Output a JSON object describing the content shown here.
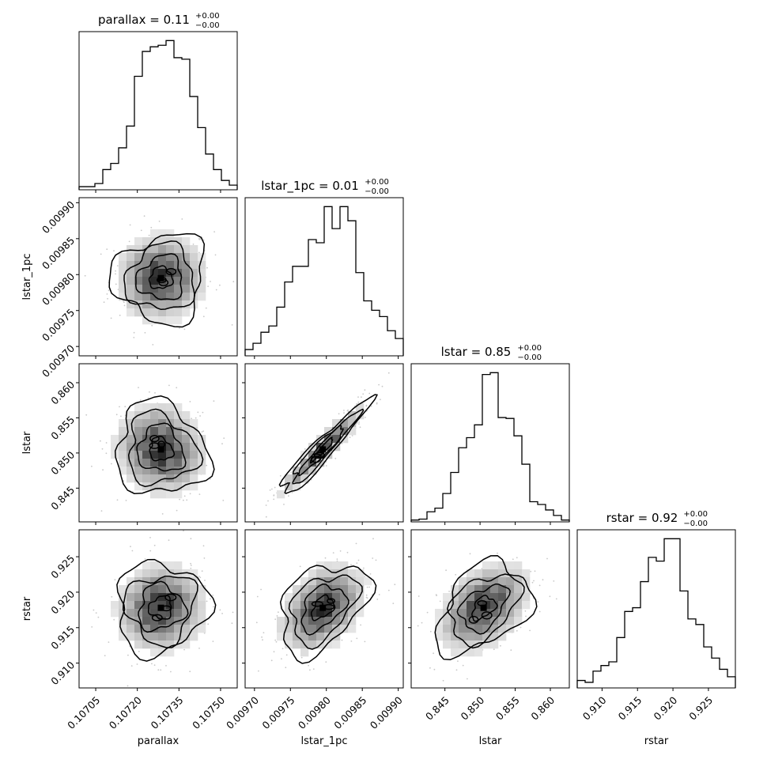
{
  "chart_data": {
    "type": "corner",
    "parameters": [
      "parallax",
      "lstar_1pc",
      "lstar",
      "rstar"
    ],
    "titles": [
      {
        "param": "parallax",
        "text": "parallax = 0.11",
        "plus": "+0.00",
        "minus": "−0.00"
      },
      {
        "param": "lstar_1pc",
        "text": "lstar_1pc = 0.01",
        "plus": "+0.00",
        "minus": "−0.00"
      },
      {
        "param": "lstar",
        "text": "lstar = 0.85",
        "plus": "+0.00",
        "minus": "−0.00"
      },
      {
        "param": "rstar",
        "text": "rstar = 0.92",
        "plus": "+0.00",
        "minus": "−0.00"
      }
    ],
    "axis_ranges": [
      [
        0.10699,
        0.10756
      ],
      [
        0.009687,
        0.009907
      ],
      [
        0.8402,
        0.8627
      ],
      [
        0.9065,
        0.9288
      ]
    ],
    "ticks": [
      {
        "values": [
          0.10705,
          0.1072,
          0.10735,
          0.1075
        ],
        "labels": [
          "0.10705",
          "0.10720",
          "0.10735",
          "0.10750"
        ]
      },
      {
        "values": [
          0.0097,
          0.00975,
          0.0098,
          0.00985,
          0.0099
        ],
        "labels": [
          "0.00970",
          "0.00975",
          "0.00980",
          "0.00985",
          "0.00990"
        ]
      },
      {
        "values": [
          0.845,
          0.85,
          0.855,
          0.86
        ],
        "labels": [
          "0.845",
          "0.850",
          "0.855",
          "0.860"
        ]
      },
      {
        "values": [
          0.91,
          0.915,
          0.92,
          0.925
        ],
        "labels": [
          "0.910",
          "0.915",
          "0.920",
          "0.925"
        ]
      }
    ],
    "histograms": [
      [
        2,
        2,
        4,
        13,
        17,
        27,
        41,
        73,
        89,
        92,
        93,
        96,
        85,
        84,
        60,
        40,
        23,
        13,
        6,
        3
      ],
      [
        4,
        8,
        15,
        19,
        31,
        47,
        57,
        57,
        74,
        72,
        95,
        81,
        95,
        86,
        53,
        35,
        29,
        25,
        16,
        11
      ],
      [
        2,
        3,
        11,
        15,
        31,
        54,
        81,
        92,
        106,
        161,
        163,
        114,
        113,
        94,
        63,
        22,
        19,
        13,
        7,
        2
      ],
      [
        4,
        3,
        9,
        12,
        14,
        27,
        41,
        43,
        57,
        70,
        68,
        80,
        80,
        52,
        37,
        34,
        22,
        16,
        10,
        6
      ]
    ],
    "means": [
      0.107285,
      0.009795,
      0.8505,
      0.9178
    ],
    "sigmas": [
      8.2e-05,
      3.05e-05,
      0.0033,
      0.0032
    ],
    "correlations": [
      [
        1,
        0.05,
        -0.1,
        0.05
      ],
      [
        0.05,
        1,
        0.95,
        0.4
      ],
      [
        -0.1,
        0.95,
        1,
        0.4
      ],
      [
        0.05,
        0.4,
        0.4,
        1
      ]
    ]
  }
}
